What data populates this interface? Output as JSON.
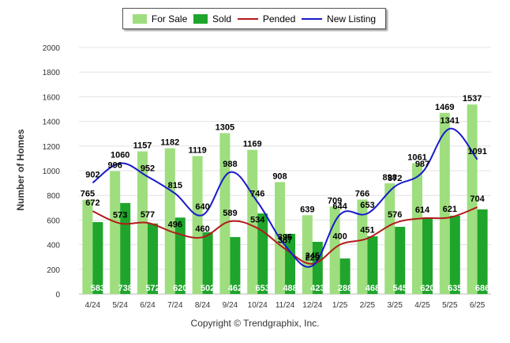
{
  "chart_data": {
    "type": "bar",
    "categories": [
      "4/24",
      "5/24",
      "6/24",
      "7/24",
      "8/24",
      "9/24",
      "10/24",
      "11/24",
      "12/24",
      "1/25",
      "2/25",
      "3/25",
      "4/25",
      "5/25",
      "6/25"
    ],
    "series": [
      {
        "name": "For Sale",
        "type": "bar",
        "color": "#9ede7e",
        "values": [
          765,
          996,
          1157,
          1182,
          1119,
          1305,
          1169,
          908,
          639,
          709,
          766,
          898,
          1061,
          1469,
          1537
        ]
      },
      {
        "name": "Sold",
        "type": "bar",
        "color": "#1fa52c",
        "values": [
          583,
          738,
          572,
          620,
          502,
          462,
          653,
          488,
          423,
          288,
          468,
          545,
          620,
          635,
          686
        ]
      },
      {
        "name": "Pended",
        "type": "line",
        "color": "#b31b1b",
        "values": [
          672,
          573,
          577,
          496,
          460,
          589,
          534,
          367,
          245,
          400,
          451,
          576,
          614,
          621,
          704
        ]
      },
      {
        "name": "New Listing",
        "type": "line",
        "color": "#1a1acc",
        "values": [
          902,
          1060,
          952,
          815,
          640,
          988,
          746,
          395,
          229,
          644,
          653,
          872,
          987,
          1341,
          1091
        ]
      }
    ],
    "ylabel": "Number of Homes",
    "ylim": [
      0,
      2000
    ],
    "yticks": [
      0,
      200,
      400,
      600,
      800,
      1000,
      1200,
      1400,
      1600,
      1800,
      2000
    ],
    "grid": true,
    "legend_position": "top"
  },
  "legend": [
    {
      "label": "For Sale",
      "kind": "box",
      "color": "#9ede7e"
    },
    {
      "label": "Sold",
      "kind": "box",
      "color": "#1fa52c"
    },
    {
      "label": "Pended",
      "kind": "line",
      "color": "#b31b1b"
    },
    {
      "label": "New Listing",
      "kind": "line",
      "color": "#1a1acc"
    }
  ],
  "footer": {
    "copyright": "Copyright © Trendgraphix, Inc."
  }
}
